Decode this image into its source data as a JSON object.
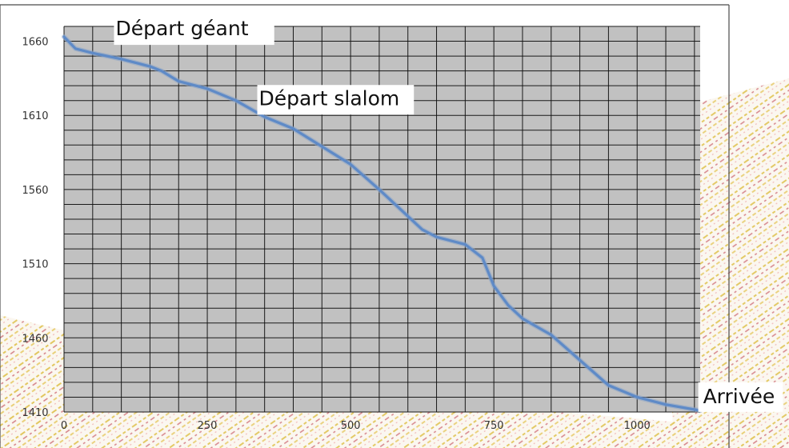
{
  "chart_data": {
    "type": "line",
    "x_ticks": [
      0,
      250,
      500,
      750,
      1000
    ],
    "y_ticks": [
      1410,
      1460,
      1510,
      1560,
      1610,
      1660
    ],
    "xlim": [
      0,
      1110
    ],
    "ylim": [
      1410,
      1670
    ],
    "grid": true,
    "series": [
      {
        "points": [
          [
            0,
            1663
          ],
          [
            20,
            1655
          ],
          [
            50,
            1652
          ],
          [
            100,
            1648
          ],
          [
            150,
            1643
          ],
          [
            170,
            1640
          ],
          [
            200,
            1633
          ],
          [
            250,
            1628
          ],
          [
            300,
            1620
          ],
          [
            350,
            1609
          ],
          [
            400,
            1601
          ],
          [
            450,
            1589
          ],
          [
            500,
            1577
          ],
          [
            550,
            1560
          ],
          [
            600,
            1542
          ],
          [
            625,
            1533
          ],
          [
            650,
            1528
          ],
          [
            700,
            1523
          ],
          [
            730,
            1514
          ],
          [
            750,
            1495
          ],
          [
            775,
            1482
          ],
          [
            800,
            1473
          ],
          [
            850,
            1462
          ],
          [
            900,
            1445
          ],
          [
            950,
            1428
          ],
          [
            1000,
            1420
          ],
          [
            1050,
            1415
          ],
          [
            1110,
            1411
          ]
        ]
      }
    ],
    "annotations": [
      {
        "text": "Départ géant",
        "x": 90,
        "y": 1664
      },
      {
        "text": "Départ slalom",
        "x": 340,
        "y": 1617
      },
      {
        "text": "Arrivée",
        "x": 1115,
        "y": 1416
      }
    ]
  },
  "theme": {
    "plot_fill": "#c1c1c1",
    "grid_color": "#111111",
    "series_color": "#5e8ac7",
    "frame_color": "#4a4a4a"
  }
}
